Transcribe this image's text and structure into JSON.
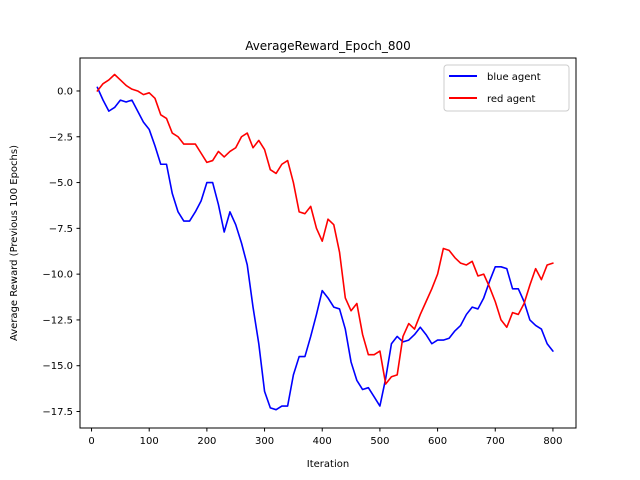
{
  "chart_data": {
    "type": "line",
    "title": "AverageReward_Epoch_800",
    "xlabel": "Iteration",
    "ylabel": "Average Reward (Previous 100 Epochs)",
    "xlim": [
      -20,
      840
    ],
    "ylim": [
      -18.4,
      1.8
    ],
    "xticks": [
      0,
      100,
      200,
      300,
      400,
      500,
      600,
      700,
      800
    ],
    "yticks": [
      0.0,
      -2.5,
      -5.0,
      -7.5,
      -10.0,
      -12.5,
      -15.0,
      -17.5
    ],
    "ytick_labels": [
      "0.0",
      "−2.5",
      "−5.0",
      "−7.5",
      "−10.0",
      "−12.5",
      "−15.0",
      "−17.5"
    ],
    "grid": false,
    "legend": "top-right",
    "series": [
      {
        "name": "blue agent",
        "color": "#0000ff",
        "x": [
          10,
          20,
          30,
          40,
          50,
          60,
          70,
          80,
          90,
          100,
          110,
          120,
          130,
          140,
          150,
          160,
          170,
          180,
          190,
          200,
          210,
          220,
          230,
          240,
          250,
          260,
          270,
          280,
          290,
          300,
          310,
          320,
          330,
          340,
          350,
          360,
          370,
          380,
          390,
          400,
          410,
          420,
          430,
          440,
          450,
          460,
          470,
          480,
          490,
          500,
          510,
          520,
          530,
          540,
          550,
          560,
          570,
          580,
          590,
          600,
          610,
          620,
          630,
          640,
          650,
          660,
          670,
          680,
          690,
          700,
          710,
          720,
          730,
          740,
          750,
          760,
          770,
          780,
          790,
          800
        ],
        "y": [
          0.2,
          -0.5,
          -1.1,
          -0.9,
          -0.5,
          -0.6,
          -0.5,
          -1.1,
          -1.7,
          -2.1,
          -3.0,
          -4.0,
          -4.0,
          -5.6,
          -6.6,
          -7.1,
          -7.1,
          -6.6,
          -6.0,
          -5.0,
          -5.0,
          -6.2,
          -7.7,
          -6.6,
          -7.3,
          -8.3,
          -9.5,
          -11.8,
          -13.8,
          -16.4,
          -17.3,
          -17.4,
          -17.2,
          -17.2,
          -15.5,
          -14.5,
          -14.5,
          -13.4,
          -12.2,
          -10.9,
          -11.3,
          -11.8,
          -11.9,
          -13.0,
          -14.8,
          -15.8,
          -16.3,
          -16.2,
          -16.7,
          -17.2,
          -15.7,
          -13.8,
          -13.4,
          -13.7,
          -13.6,
          -13.3,
          -12.9,
          -13.3,
          -13.8,
          -13.6,
          -13.6,
          -13.5,
          -13.1,
          -12.8,
          -12.2,
          -11.8,
          -11.9,
          -11.3,
          -10.4,
          -9.6,
          -9.6,
          -9.7,
          -10.8,
          -10.8,
          -11.5,
          -12.5,
          -12.8,
          -13.0,
          -13.8,
          -14.2
        ]
      },
      {
        "name": "red agent",
        "color": "#ff0000",
        "x": [
          10,
          20,
          30,
          40,
          50,
          60,
          70,
          80,
          90,
          100,
          110,
          120,
          130,
          140,
          150,
          160,
          170,
          180,
          190,
          200,
          210,
          220,
          230,
          240,
          250,
          260,
          270,
          280,
          290,
          300,
          310,
          320,
          330,
          340,
          350,
          360,
          370,
          380,
          390,
          400,
          410,
          420,
          430,
          440,
          450,
          460,
          470,
          480,
          490,
          500,
          510,
          520,
          530,
          540,
          550,
          560,
          570,
          580,
          590,
          600,
          610,
          620,
          630,
          640,
          650,
          660,
          670,
          680,
          690,
          700,
          710,
          720,
          730,
          740,
          750,
          760,
          770,
          780,
          790,
          800
        ],
        "y": [
          0.0,
          0.4,
          0.6,
          0.9,
          0.6,
          0.3,
          0.1,
          0.0,
          -0.2,
          -0.1,
          -0.4,
          -1.3,
          -1.5,
          -2.3,
          -2.5,
          -2.9,
          -2.9,
          -2.9,
          -3.4,
          -3.9,
          -3.8,
          -3.3,
          -3.6,
          -3.3,
          -3.1,
          -2.5,
          -2.3,
          -3.1,
          -2.7,
          -3.2,
          -4.3,
          -4.5,
          -4.0,
          -3.8,
          -5.0,
          -6.6,
          -6.7,
          -6.3,
          -7.5,
          -8.2,
          -7.0,
          -7.3,
          -8.8,
          -11.3,
          -12.0,
          -11.6,
          -13.3,
          -14.4,
          -14.4,
          -14.2,
          -16.0,
          -15.6,
          -15.5,
          -13.4,
          -12.7,
          -13.0,
          -12.2,
          -11.5,
          -10.8,
          -10.0,
          -8.6,
          -8.7,
          -9.1,
          -9.4,
          -9.5,
          -9.3,
          -10.1,
          -10.0,
          -10.7,
          -11.5,
          -12.5,
          -12.9,
          -12.1,
          -12.2,
          -11.6,
          -10.6,
          -9.7,
          -10.3,
          -9.5,
          -9.4
        ]
      }
    ]
  }
}
